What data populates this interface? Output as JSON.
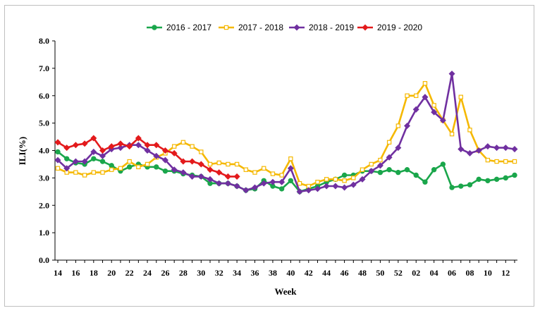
{
  "chart_data": {
    "type": "line",
    "title": "",
    "xlabel": "Week",
    "ylabel": "ILI(%)",
    "ylim": [
      0,
      8
    ],
    "y_ticks": [
      "0.0",
      "1.0",
      "2.0",
      "3.0",
      "4.0",
      "5.0",
      "6.0",
      "7.0",
      "8.0"
    ],
    "x_tick_labels": [
      "14",
      "16",
      "18",
      "20",
      "22",
      "24",
      "26",
      "28",
      "30",
      "32",
      "34",
      "36",
      "38",
      "40",
      "42",
      "44",
      "46",
      "48",
      "50",
      "52",
      "02",
      "04",
      "06",
      "08",
      "10",
      "12"
    ],
    "grid": false,
    "legend_position": "top",
    "categories": [
      "14",
      "15",
      "16",
      "17",
      "18",
      "19",
      "20",
      "21",
      "22",
      "23",
      "24",
      "25",
      "26",
      "27",
      "28",
      "29",
      "30",
      "31",
      "32",
      "33",
      "34",
      "35",
      "36",
      "37",
      "38",
      "39",
      "40",
      "41",
      "42",
      "43",
      "44",
      "45",
      "46",
      "47",
      "48",
      "49",
      "50",
      "51",
      "52",
      "01",
      "02",
      "03",
      "04",
      "05",
      "06",
      "07",
      "08",
      "09",
      "10",
      "11",
      "12",
      "13"
    ],
    "series": [
      {
        "name": "2016 - 2017",
        "color": "#1aa64b",
        "marker": "circle",
        "values": [
          3.95,
          3.7,
          3.55,
          3.5,
          3.7,
          3.6,
          3.45,
          3.25,
          3.4,
          3.5,
          3.4,
          3.4,
          3.25,
          3.25,
          3.15,
          3.1,
          3.05,
          2.8,
          2.8,
          2.8,
          2.7,
          2.55,
          2.6,
          2.9,
          2.7,
          2.6,
          2.9,
          2.5,
          2.6,
          2.7,
          2.85,
          2.95,
          3.1,
          3.1,
          3.25,
          3.25,
          3.2,
          3.3,
          3.2,
          3.3,
          3.1,
          2.85,
          3.3,
          3.5,
          2.65,
          2.7,
          2.75,
          2.95,
          2.9,
          2.95,
          3.0,
          3.1
        ]
      },
      {
        "name": "2017 - 2018",
        "color": "#f5b800",
        "marker": "square",
        "values": [
          3.35,
          3.2,
          3.2,
          3.1,
          3.2,
          3.2,
          3.3,
          3.35,
          3.6,
          3.4,
          3.5,
          3.75,
          3.9,
          4.15,
          4.3,
          4.15,
          3.95,
          3.5,
          3.55,
          3.5,
          3.5,
          3.3,
          3.2,
          3.35,
          3.15,
          3.1,
          3.7,
          2.8,
          2.7,
          2.85,
          2.95,
          2.95,
          2.9,
          3.0,
          3.3,
          3.5,
          3.65,
          4.3,
          4.9,
          6.0,
          6.0,
          6.45,
          5.65,
          5.1,
          4.6,
          5.95,
          4.75,
          4.0,
          3.65,
          3.6,
          3.6,
          3.6
        ]
      },
      {
        "name": "2018 - 2019",
        "color": "#7030a0",
        "marker": "diamond",
        "values": [
          3.65,
          3.35,
          3.6,
          3.6,
          3.95,
          3.8,
          4.05,
          4.1,
          4.2,
          4.2,
          4.0,
          3.8,
          3.65,
          3.3,
          3.2,
          3.05,
          3.05,
          2.95,
          2.8,
          2.8,
          2.7,
          2.55,
          2.65,
          2.8,
          2.85,
          2.85,
          3.35,
          2.5,
          2.55,
          2.6,
          2.7,
          2.7,
          2.65,
          2.75,
          2.95,
          3.25,
          3.45,
          3.75,
          4.1,
          4.9,
          5.5,
          5.95,
          5.4,
          5.1,
          6.8,
          4.05,
          3.9,
          4.0,
          4.15,
          4.1,
          4.1,
          4.05
        ]
      },
      {
        "name": "2019 - 2020",
        "color": "#e31a1c",
        "marker": "diamond",
        "values": [
          4.3,
          4.1,
          4.2,
          4.25,
          4.45,
          4.0,
          4.15,
          4.25,
          4.15,
          4.45,
          4.2,
          4.2,
          4.0,
          3.9,
          3.6,
          3.6,
          3.5,
          3.3,
          3.2,
          3.05,
          3.05,
          null,
          null,
          null,
          null,
          null,
          null,
          null,
          null,
          null,
          null,
          null,
          null,
          null,
          null,
          null,
          null,
          null,
          null,
          null,
          null,
          null,
          null,
          null,
          null,
          null,
          null,
          null,
          null,
          null,
          null,
          null
        ]
      }
    ]
  }
}
